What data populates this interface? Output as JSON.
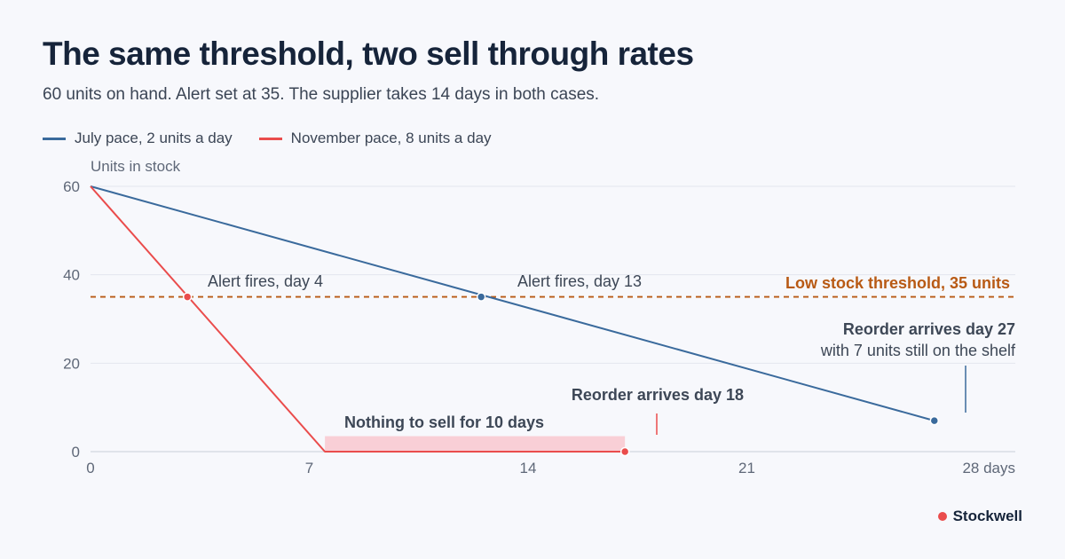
{
  "header": {
    "title": "The same threshold, two sell through rates",
    "subtitle": "60 units on hand. Alert set at 35. The supplier takes 14 days in both cases."
  },
  "brand": {
    "name": "Stockwell",
    "dot_color": "#ea4c4c"
  },
  "colors": {
    "july": "#3a6a9c",
    "november": "#ea4c4c",
    "threshold": "#b85a14",
    "gap_fill": "#f9cfd6",
    "grid": "#e3e6ee",
    "axis_text": "#5f6878",
    "annotation_dark": "#3d4756"
  },
  "chart_data": {
    "type": "line",
    "ylabel": "Units in stock",
    "xlim": [
      0,
      28
    ],
    "ylim": [
      0,
      60
    ],
    "x_ticks": [
      0,
      7,
      14,
      21,
      28
    ],
    "x_tick_labels": [
      "0",
      "7",
      "14",
      "21",
      "28 days"
    ],
    "y_ticks": [
      0,
      20,
      40,
      60
    ],
    "y_tick_labels": [
      "0",
      "20",
      "40",
      "60"
    ],
    "grid": true,
    "legend_position": "top-left",
    "threshold": {
      "value": 35,
      "label": "Low stock threshold, 35 units"
    },
    "series": [
      {
        "name": "July pace, 2 units a day",
        "color_key": "july",
        "points": [
          [
            0,
            60
          ],
          [
            27,
            7
          ]
        ],
        "markers": [
          [
            12.5,
            35
          ],
          [
            27,
            7
          ]
        ]
      },
      {
        "name": "November pace, 8 units a day",
        "color_key": "november",
        "points": [
          [
            0,
            60
          ],
          [
            7.5,
            0
          ],
          [
            17.1,
            0
          ]
        ],
        "markers": [
          [
            3.1,
            35
          ],
          [
            17.1,
            0
          ]
        ]
      }
    ],
    "shaded_region": {
      "x0": 7.5,
      "x1": 17.1,
      "y0": 0,
      "y1": 3.5,
      "label": "Nothing to sell for 10 days"
    },
    "annotations": {
      "alert_nov": "Alert fires, day 4",
      "alert_jul": "Alert fires, day 13",
      "reorder_nov": "Reorder arrives day 18",
      "reorder_jul_line1": "Reorder arrives day 27",
      "reorder_jul_line2": "with 7 units still on the shelf"
    }
  }
}
